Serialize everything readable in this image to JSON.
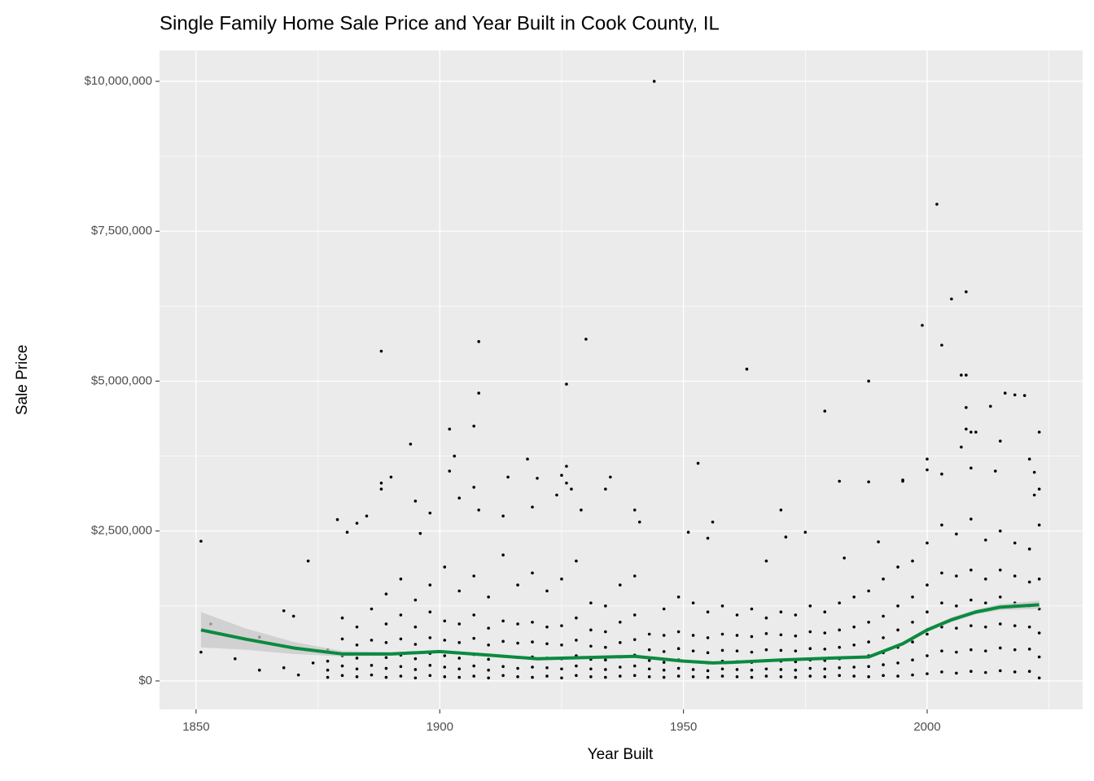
{
  "chart_data": {
    "type": "scatter",
    "title": "Single Family Home Sale Price and Year Built in Cook County, IL",
    "x_label": "Year Built",
    "y_label": "Sale Price",
    "xlim": [
      1842.5,
      2031.9
    ],
    "ylim": [
      -475000,
      10515000
    ],
    "xticks": [
      1850,
      1900,
      1950,
      2000
    ],
    "yticks": [
      {
        "value": 0,
        "label": "$0"
      },
      {
        "value": 2500000,
        "label": "$2,500,000"
      },
      {
        "value": 5000000,
        "label": "$5,000,000"
      },
      {
        "value": 7500000,
        "label": "$7,500,000"
      },
      {
        "value": 10000000,
        "label": "$10,000,000"
      }
    ],
    "grid": true,
    "point_color": "#000000",
    "x": [
      1851,
      1851,
      1853,
      1858,
      1863,
      1863,
      1868,
      1868,
      1870,
      1873,
      1871,
      1874,
      1879,
      1881,
      1883,
      1885,
      1888,
      1888,
      1888,
      1890,
      1894,
      1895,
      1896,
      1898,
      1902,
      1902,
      1903,
      1904,
      1907,
      1907,
      1908,
      1908,
      1908,
      1913,
      1914,
      1918,
      1919,
      1920,
      1924,
      1925,
      1926,
      1926,
      1926,
      1927,
      1929,
      1930,
      1934,
      1935,
      1940,
      1941,
      1944,
      1951,
      1953,
      1955,
      1956,
      1963,
      1967,
      1970,
      1971,
      1975,
      1979,
      1982,
      1983,
      1988,
      1988,
      1990,
      1995,
      1995,
      1999,
      2000,
      2000,
      2002,
      2003,
      2003,
      2005,
      2007,
      2008,
      2008,
      2008,
      2008,
      2009,
      2009,
      2007,
      2010,
      2013,
      2014,
      2015,
      2016,
      2018,
      2020,
      2021,
      2022,
      2023,
      2023,
      2022,
      1877,
      1877,
      1877,
      1877,
      1880,
      1880,
      1880,
      1880,
      1880,
      1883,
      1883,
      1883,
      1883,
      1883,
      1886,
      1886,
      1886,
      1886,
      1886,
      1889,
      1889,
      1889,
      1889,
      1889,
      1889,
      1892,
      1892,
      1892,
      1892,
      1892,
      1892,
      1895,
      1895,
      1895,
      1895,
      1895,
      1895,
      1898,
      1898,
      1898,
      1898,
      1898,
      1898,
      1901,
      1901,
      1901,
      1901,
      1901,
      1901,
      1904,
      1904,
      1904,
      1904,
      1904,
      1904,
      1907,
      1907,
      1907,
      1907,
      1907,
      1907,
      1910,
      1910,
      1910,
      1910,
      1910,
      1910,
      1913,
      1913,
      1913,
      1913,
      1913,
      1913,
      1916,
      1916,
      1916,
      1916,
      1916,
      1916,
      1919,
      1919,
      1919,
      1919,
      1919,
      1919,
      1922,
      1922,
      1922,
      1922,
      1922,
      1922,
      1925,
      1925,
      1925,
      1925,
      1925,
      1925,
      1928,
      1928,
      1928,
      1928,
      1928,
      1928,
      1931,
      1931,
      1931,
      1931,
      1931,
      1931,
      1934,
      1934,
      1934,
      1934,
      1934,
      1934,
      1937,
      1937,
      1937,
      1937,
      1937,
      1937,
      1940,
      1940,
      1940,
      1940,
      1940,
      1940,
      1943,
      1943,
      1943,
      1943,
      1943,
      1946,
      1946,
      1946,
      1946,
      1946,
      1946,
      1949,
      1949,
      1949,
      1949,
      1949,
      1949,
      1952,
      1952,
      1952,
      1952,
      1952,
      1952,
      1955,
      1955,
      1955,
      1955,
      1955,
      1955,
      1958,
      1958,
      1958,
      1958,
      1958,
      1958,
      1961,
      1961,
      1961,
      1961,
      1961,
      1961,
      1964,
      1964,
      1964,
      1964,
      1964,
      1964,
      1967,
      1967,
      1967,
      1967,
      1967,
      1967,
      1970,
      1970,
      1970,
      1970,
      1970,
      1970,
      1973,
      1973,
      1973,
      1973,
      1973,
      1973,
      1976,
      1976,
      1976,
      1976,
      1976,
      1976,
      1979,
      1979,
      1979,
      1979,
      1979,
      1979,
      1982,
      1982,
      1982,
      1982,
      1982,
      1982,
      1985,
      1985,
      1985,
      1985,
      1985,
      1985,
      1988,
      1988,
      1988,
      1988,
      1988,
      1988,
      1991,
      1991,
      1991,
      1991,
      1991,
      1991,
      1994,
      1994,
      1994,
      1994,
      1994,
      1994,
      1997,
      1997,
      1997,
      1997,
      1997,
      1997,
      2000,
      2000,
      2000,
      2000,
      2000,
      2000,
      2003,
      2003,
      2003,
      2003,
      2003,
      2003,
      2006,
      2006,
      2006,
      2006,
      2006,
      2006,
      2009,
      2009,
      2009,
      2009,
      2009,
      2009,
      2012,
      2012,
      2012,
      2012,
      2012,
      2012,
      2015,
      2015,
      2015,
      2015,
      2015,
      2015,
      2018,
      2018,
      2018,
      2018,
      2018,
      2018,
      2021,
      2021,
      2021,
      2021,
      2021,
      2021,
      2023,
      2023,
      2023,
      2023,
      2023,
      2023
    ],
    "values": [
      2330000,
      480000,
      950000,
      370000,
      730000,
      180000,
      1170000,
      220000,
      1080000,
      2000000,
      100000,
      300000,
      2690000,
      2480000,
      2630000,
      2750000,
      5500000,
      3300000,
      3200000,
      3400000,
      3950000,
      3000000,
      2460000,
      2800000,
      4200000,
      3500000,
      3750000,
      3050000,
      4250000,
      3230000,
      4800000,
      5660000,
      2850000,
      2750000,
      3400000,
      3700000,
      2900000,
      3380000,
      3100000,
      3430000,
      4950000,
      3580000,
      3300000,
      3200000,
      2850000,
      5700000,
      3200000,
      3400000,
      2850000,
      2650000,
      10000000,
      2480000,
      3630000,
      2380000,
      2650000,
      5200000,
      2000000,
      2850000,
      2400000,
      2480000,
      4500000,
      3330000,
      2050000,
      5000000,
      3320000,
      2320000,
      3350000,
      3330000,
      5930000,
      3700000,
      3520000,
      7950000,
      5600000,
      3450000,
      6370000,
      5100000,
      5100000,
      6490000,
      4560000,
      4200000,
      4150000,
      3550000,
      3900000,
      4150000,
      4580000,
      3500000,
      4000000,
      4800000,
      4770000,
      4760000,
      3700000,
      3480000,
      4150000,
      3200000,
      3100000,
      60000,
      180000,
      330000,
      520000,
      90000,
      250000,
      420000,
      700000,
      1050000,
      70000,
      200000,
      380000,
      600000,
      900000,
      100000,
      260000,
      450000,
      680000,
      1200000,
      60000,
      210000,
      390000,
      640000,
      950000,
      1450000,
      80000,
      240000,
      430000,
      700000,
      1100000,
      1700000,
      50000,
      190000,
      370000,
      610000,
      900000,
      1350000,
      90000,
      260000,
      460000,
      720000,
      1150000,
      1600000,
      70000,
      230000,
      420000,
      680000,
      1000000,
      1900000,
      60000,
      200000,
      380000,
      640000,
      950000,
      1500000,
      80000,
      250000,
      440000,
      710000,
      1100000,
      1750000,
      50000,
      180000,
      360000,
      600000,
      880000,
      1400000,
      90000,
      240000,
      410000,
      660000,
      1000000,
      2100000,
      70000,
      210000,
      390000,
      630000,
      950000,
      1600000,
      60000,
      230000,
      400000,
      650000,
      980000,
      1800000,
      80000,
      220000,
      380000,
      620000,
      900000,
      1500000,
      50000,
      200000,
      370000,
      600000,
      920000,
      1700000,
      90000,
      250000,
      420000,
      680000,
      1050000,
      2000000,
      70000,
      200000,
      360000,
      580000,
      850000,
      1300000,
      60000,
      190000,
      350000,
      560000,
      820000,
      1250000,
      80000,
      230000,
      400000,
      640000,
      980000,
      1600000,
      90000,
      250000,
      430000,
      690000,
      1100000,
      1750000,
      70000,
      200000,
      340000,
      520000,
      780000,
      60000,
      180000,
      310000,
      490000,
      760000,
      1200000,
      80000,
      210000,
      350000,
      540000,
      820000,
      1400000,
      70000,
      190000,
      320000,
      500000,
      760000,
      1300000,
      60000,
      170000,
      300000,
      470000,
      720000,
      1150000,
      80000,
      200000,
      330000,
      510000,
      780000,
      1250000,
      70000,
      190000,
      320000,
      500000,
      760000,
      1100000,
      60000,
      180000,
      310000,
      480000,
      740000,
      1200000,
      80000,
      200000,
      340000,
      520000,
      790000,
      1050000,
      70000,
      190000,
      330000,
      510000,
      770000,
      1150000,
      60000,
      180000,
      320000,
      500000,
      750000,
      1100000,
      80000,
      210000,
      350000,
      540000,
      820000,
      1250000,
      70000,
      200000,
      340000,
      530000,
      800000,
      1150000,
      90000,
      220000,
      370000,
      560000,
      850000,
      1300000,
      80000,
      230000,
      390000,
      600000,
      900000,
      1400000,
      70000,
      240000,
      420000,
      650000,
      980000,
      1500000,
      90000,
      270000,
      470000,
      720000,
      1080000,
      1700000,
      80000,
      300000,
      560000,
      850000,
      1250000,
      1900000,
      100000,
      350000,
      650000,
      980000,
      1400000,
      2000000,
      120000,
      420000,
      780000,
      1150000,
      1600000,
      2300000,
      150000,
      500000,
      900000,
      1300000,
      1800000,
      2600000,
      130000,
      480000,
      880000,
      1250000,
      1750000,
      2450000,
      160000,
      520000,
      920000,
      1350000,
      1850000,
      2700000,
      140000,
      500000,
      900000,
      1300000,
      1700000,
      2350000,
      170000,
      550000,
      950000,
      1400000,
      1850000,
      2500000,
      150000,
      520000,
      920000,
      1300000,
      1750000,
      2300000,
      160000,
      530000,
      900000,
      1250000,
      1650000,
      2200000,
      50000,
      400000,
      800000,
      1200000,
      1700000,
      2600000
    ],
    "smooth": {
      "color": "#0b8a3f",
      "band_color": "#c8c8c8",
      "x": [
        1851,
        1860,
        1870,
        1880,
        1890,
        1900,
        1910,
        1920,
        1930,
        1940,
        1950,
        1956,
        1960,
        1970,
        1980,
        1988,
        1995,
        2000,
        2005,
        2010,
        2015,
        2023
      ],
      "values": [
        850000,
        700000,
        550000,
        450000,
        450000,
        490000,
        430000,
        370000,
        390000,
        410000,
        330000,
        300000,
        310000,
        350000,
        380000,
        400000,
        620000,
        850000,
        1020000,
        1150000,
        1230000,
        1270000
      ],
      "lower": [
        560000,
        520000,
        450000,
        410000,
        420000,
        470000,
        410000,
        350000,
        370000,
        390000,
        315000,
        285000,
        295000,
        335000,
        360000,
        375000,
        590000,
        815000,
        980000,
        1110000,
        1180000,
        1200000
      ],
      "upper": [
        1150000,
        880000,
        650000,
        500000,
        480000,
        510000,
        450000,
        390000,
        410000,
        430000,
        345000,
        315000,
        325000,
        365000,
        400000,
        425000,
        650000,
        885000,
        1060000,
        1190000,
        1280000,
        1340000
      ]
    }
  }
}
